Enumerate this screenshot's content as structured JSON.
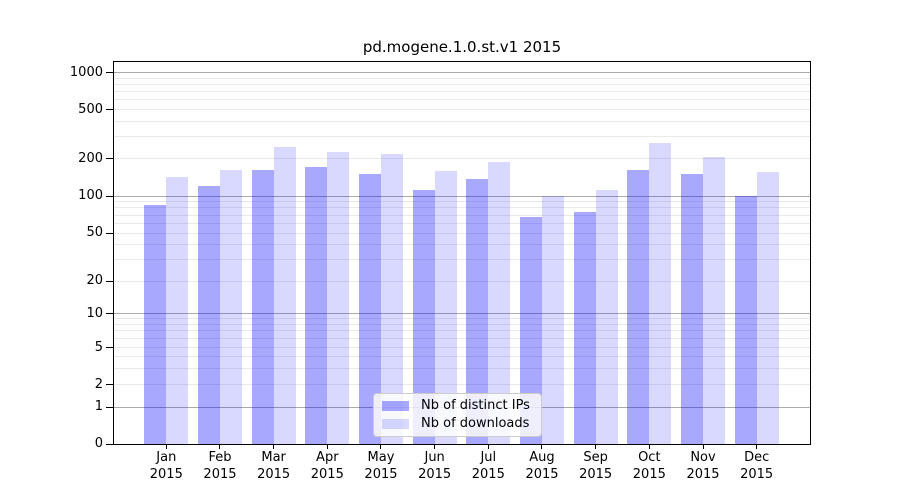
{
  "figure": {
    "background": "#ffffff"
  },
  "chart_data": {
    "type": "bar",
    "title": "pd.mogene.1.0.st.v1 2015",
    "x_year": "2015",
    "categories": [
      "Jan",
      "Feb",
      "Mar",
      "Apr",
      "May",
      "Jun",
      "Jul",
      "Aug",
      "Sep",
      "Oct",
      "Nov",
      "Dec"
    ],
    "series": [
      {
        "name": "Nb of distinct IPs",
        "key": "ips",
        "color": "rgba(0,0,255,0.34)",
        "values": [
          84,
          120,
          162,
          171,
          151,
          111,
          137,
          68,
          74,
          163,
          151,
          100
        ]
      },
      {
        "name": "Nb of downloads",
        "key": "downloads",
        "color": "rgba(0,0,255,0.15)",
        "values": [
          142,
          161,
          249,
          224,
          216,
          159,
          187,
          100,
          112,
          269,
          205,
          155
        ]
      }
    ],
    "y_ticks": [
      0,
      1,
      2,
      5,
      10,
      20,
      50,
      100,
      200,
      500,
      1000
    ],
    "ylim": [
      0,
      1000
    ],
    "y_scale": "log-like-with-zero-baseline",
    "grid": {
      "major_at": [
        1,
        10,
        100,
        1000
      ],
      "major_color": "#ababab",
      "minor_color": "#e9e9ed"
    },
    "legend": {
      "position": "lower-center",
      "entries": [
        "Nb of distinct IPs",
        "Nb of downloads"
      ]
    },
    "axis_color": "#000000",
    "text_color": "#000000"
  }
}
